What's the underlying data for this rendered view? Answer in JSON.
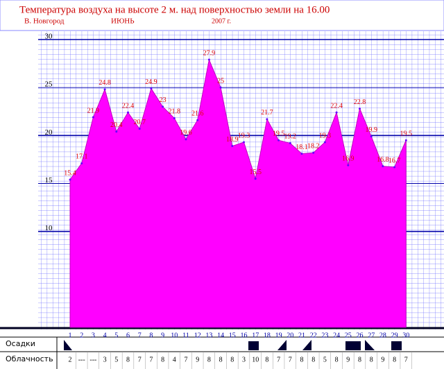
{
  "chart_data": {
    "type": "area",
    "title": "Температура воздуха на высоте 2 м. над поверхностью земли на 16.00",
    "subtitle_city": "В. Новгород",
    "subtitle_month": "ИЮНЬ",
    "subtitle_year": "2007 г.",
    "categories": [
      "1",
      "2",
      "3",
      "4",
      "5",
      "6",
      "7",
      "8",
      "9",
      "10",
      "11",
      "12",
      "13",
      "14",
      "15",
      "16",
      "17",
      "18",
      "19",
      "20",
      "21",
      "22",
      "23",
      "24",
      "25",
      "26",
      "27",
      "28",
      "29",
      "30"
    ],
    "values": [
      15.4,
      17.1,
      21.9,
      24.8,
      20.4,
      22.4,
      20.7,
      24.9,
      23.0,
      21.8,
      19.6,
      21.6,
      27.9,
      25.0,
      18.9,
      19.3,
      15.5,
      21.7,
      19.5,
      19.2,
      18.1,
      18.2,
      19.3,
      22.4,
      16.9,
      22.8,
      19.9,
      16.8,
      16.7,
      19.5
    ],
    "color": "#ff00ff",
    "ylim": [
      0,
      30
    ],
    "yticks": [
      10,
      15,
      20,
      25,
      30
    ],
    "grid": true,
    "row_labels": [
      "Осадки",
      "Облачность"
    ],
    "cloudiness": [
      2,
      "---",
      "---",
      3,
      5,
      8,
      7,
      7,
      8,
      4,
      7,
      9,
      8,
      8,
      8,
      3,
      10,
      8,
      7,
      7,
      8,
      8,
      5,
      8,
      9,
      8,
      8,
      9,
      8,
      7
    ]
  }
}
